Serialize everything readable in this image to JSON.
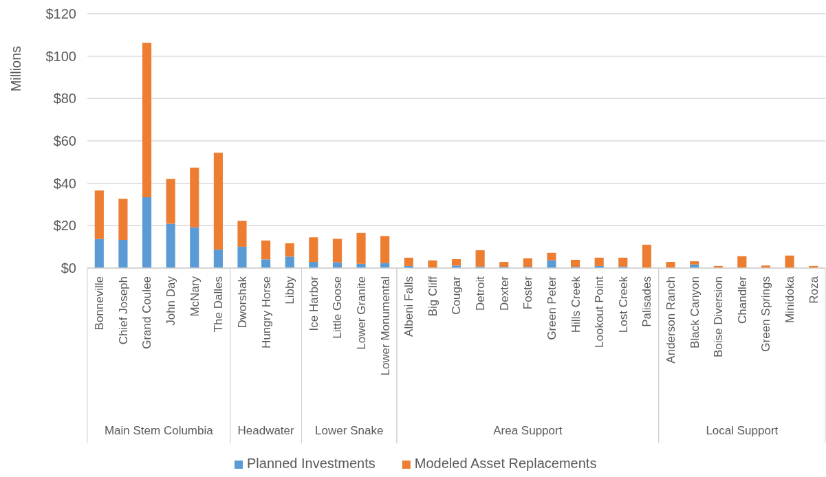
{
  "chart_data": {
    "type": "bar",
    "stacked": true,
    "ylabel": "Millions",
    "categories": [
      "Bonneville",
      "Chief Joseph",
      "Grand Coulee",
      "John Day",
      "McNary",
      "The Dalles",
      "Dworshak",
      "Hungry Horse",
      "Libby",
      "Ice Harbor",
      "Little Goose",
      "Lower Granite",
      "Lower Monumental",
      "Albeni Falls",
      "Big Cliff",
      "Cougar",
      "Detroit",
      "Dexter",
      "Foster",
      "Green Peter",
      "Hills Creek",
      "Lookout Point",
      "Lost Creek",
      "Palisades",
      "Anderson Ranch",
      "Black Canyon",
      "Boise Diversion",
      "Chandler",
      "Green Springs",
      "Minidoka",
      "Roza"
    ],
    "series": [
      {
        "name": "Planned Investments",
        "color": "#5b9bd5",
        "values": [
          13.7,
          13.3,
          33.4,
          20.9,
          19.2,
          8.7,
          10.1,
          4.1,
          5.4,
          2.9,
          2.7,
          2.0,
          2.3,
          1.0,
          0,
          1.2,
          0.7,
          0.6,
          0.6,
          3.7,
          0.6,
          1.0,
          0.7,
          0,
          0,
          1.7,
          0,
          0,
          0,
          0,
          0
        ]
      },
      {
        "name": "Modeled Asset Replacements",
        "color": "#ed7d31",
        "values": [
          22.9,
          19.4,
          72.9,
          21.2,
          28.2,
          45.7,
          12.2,
          8.9,
          6.3,
          11.6,
          11.1,
          14.6,
          12.8,
          3.9,
          3.6,
          3.0,
          7.7,
          2.3,
          4.0,
          3.5,
          3.3,
          3.9,
          4.2,
          11.0,
          2.9,
          1.5,
          1.0,
          5.6,
          1.2,
          5.9,
          1.0
        ]
      }
    ],
    "annotations": [
      "Main Stem Columbia",
      "Headwater",
      "Lower Snake",
      "Area Support",
      "Local Support"
    ],
    "ylim": [
      0,
      120
    ],
    "yticks": [
      {
        "value": 0,
        "label": "$0"
      },
      {
        "value": 20,
        "label": "$20"
      },
      {
        "value": 40,
        "label": "$40"
      },
      {
        "value": 60,
        "label": "$60"
      },
      {
        "value": 80,
        "label": "$80"
      },
      {
        "value": 100,
        "label": "$100"
      },
      {
        "value": 120,
        "label": "$120"
      }
    ],
    "grid": "y",
    "legend": "bottom"
  }
}
